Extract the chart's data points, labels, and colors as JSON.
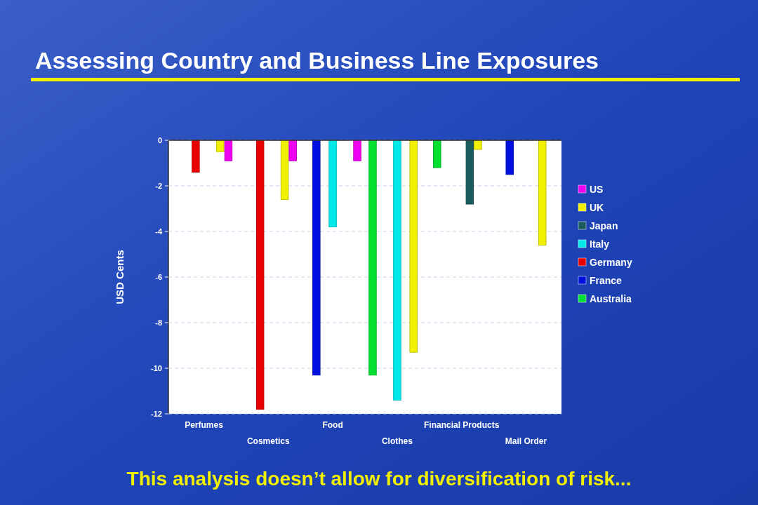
{
  "chart_data": {
    "type": "bar",
    "title": "Assessing Country and Business Line Exposures",
    "ylabel": "USD Cents",
    "categories": [
      "Perfumes",
      "Cosmetics",
      "Food",
      "Clothes",
      "Financial Products",
      "Mail Order"
    ],
    "series": [
      {
        "name": "Australia",
        "color": "#00e030",
        "values": [
          null,
          null,
          null,
          -10.3,
          -1.2,
          null
        ]
      },
      {
        "name": "France",
        "color": "#0010e0",
        "values": [
          null,
          null,
          -10.3,
          null,
          null,
          -1.5
        ]
      },
      {
        "name": "Germany",
        "color": "#e80000",
        "values": [
          -1.4,
          -11.8,
          null,
          null,
          null,
          null
        ]
      },
      {
        "name": "Italy",
        "color": "#00e8e8",
        "values": [
          null,
          null,
          -3.8,
          -11.4,
          null,
          null
        ]
      },
      {
        "name": "Japan",
        "color": "#1a5c5c",
        "values": [
          null,
          null,
          null,
          null,
          -2.8,
          null
        ]
      },
      {
        "name": "UK",
        "color": "#f0f000",
        "values": [
          -0.5,
          -2.6,
          null,
          -9.3,
          -0.4,
          -4.6
        ]
      },
      {
        "name": "US",
        "color": "#f000f0",
        "values": [
          -0.9,
          -0.9,
          -0.9,
          null,
          null,
          null
        ]
      }
    ],
    "ylim": [
      -12,
      0
    ],
    "yticks": [
      0,
      -2,
      -4,
      -6,
      -8,
      -10,
      -12
    ],
    "grid": "y",
    "legend": "right",
    "annotations": [
      "This analysis doesn’t allow for diversification of risk..."
    ]
  }
}
